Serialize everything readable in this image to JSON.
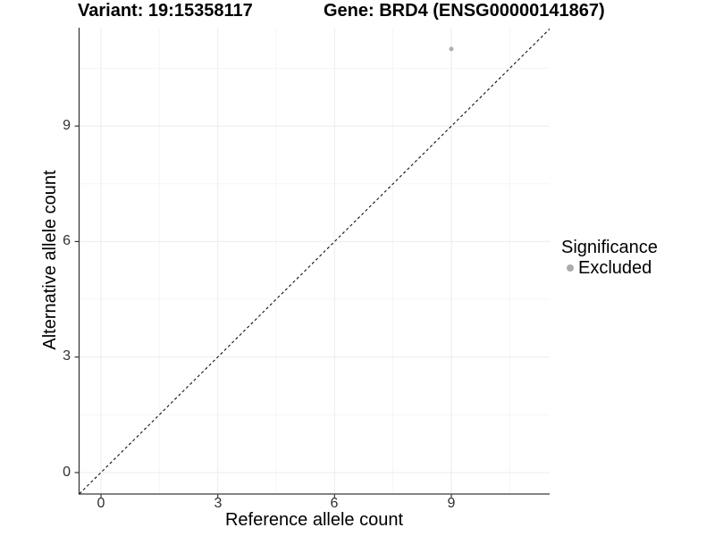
{
  "chart_data": {
    "type": "scatter",
    "titles": {
      "left": "Variant: 19:15358117",
      "right": "Gene: BRD4 (ENSG00000141867)"
    },
    "xlabel": "Reference allele count",
    "ylabel": "Alternative allele count",
    "xticks": [
      "0",
      "3",
      "6",
      "9"
    ],
    "yticks": [
      "0",
      "3",
      "6",
      "9"
    ],
    "xtick_values": [
      0,
      3,
      6,
      9
    ],
    "ytick_values": [
      0,
      3,
      6,
      9
    ],
    "xlim": [
      -0.6,
      11.5
    ],
    "ylim": [
      -0.6,
      11.6
    ],
    "grid": true,
    "points": [
      {
        "x": 9,
        "y": 11,
        "significance": "Excluded"
      }
    ],
    "reference_line": {
      "equation": "y = x",
      "style": "dashed",
      "color": "#000000"
    },
    "legend": {
      "position": "right",
      "title": "Significance",
      "entries": [
        {
          "label": "Excluded",
          "color": "#ababab"
        }
      ]
    },
    "colors": {
      "point": "#b0b0b0",
      "grid_major": "#ebebeb",
      "grid_minor": "#f5f5f5",
      "axis_line": "#3a3a3a",
      "tick_text": "#303030"
    }
  }
}
